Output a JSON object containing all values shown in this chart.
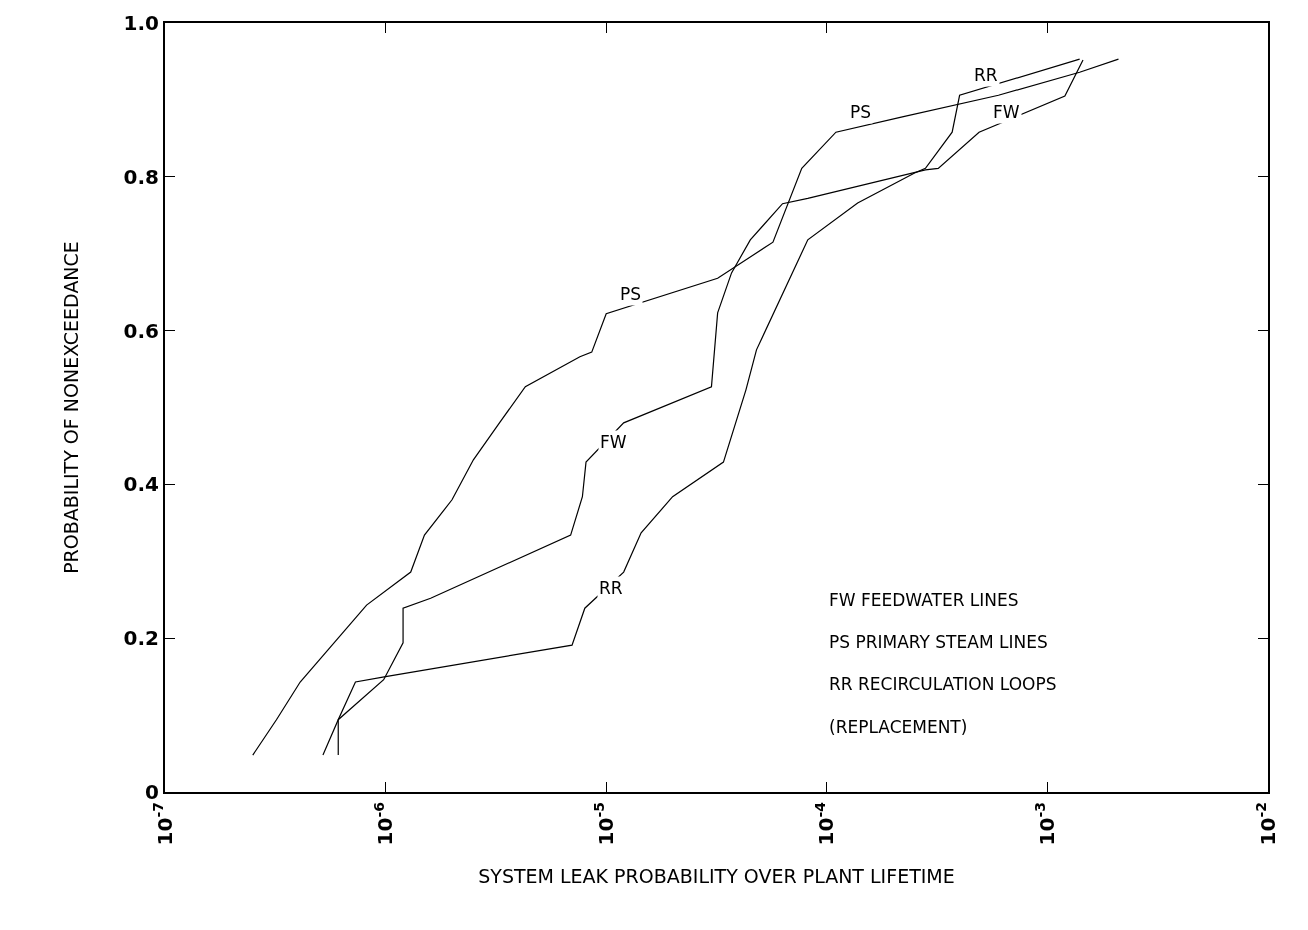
{
  "chart_data": {
    "type": "line",
    "xlabel": "SYSTEM LEAK PROBABILITY OVER PLANT LIFETIME",
    "ylabel": "PROBABILITY OF NONEXCEEDANCE",
    "log": "x",
    "grid": false,
    "marker": "none",
    "line_style": "solid",
    "xlim": [
      1e-07,
      0.01
    ],
    "xticks": [
      {
        "value": 1e-07,
        "label": "10$^{-7}$"
      },
      {
        "value": 1e-06,
        "label": "10$^{-6}$"
      },
      {
        "value": 1e-05,
        "label": "10$^{-5}$"
      },
      {
        "value": 0.0001,
        "label": "10$^{-4}$"
      },
      {
        "value": 0.001,
        "label": "10$^{-3}$"
      },
      {
        "value": 0.01,
        "label": "10$^{-2}$"
      }
    ],
    "ylim": [
      0,
      1
    ],
    "yticks": [
      0,
      {
        "value": 0.2,
        "label": "0.2"
      },
      {
        "value": 0.4,
        "label": "0.4"
      },
      {
        "value": 0.6,
        "label": "0.6"
      },
      {
        "value": 0.8,
        "label": "0.8"
      },
      {
        "value": 1,
        "label": "1.0"
      }
    ],
    "series": [
      {
        "color": "#000000",
        "x": [
          2.5e-07,
          3.2e-07,
          4.1e-07,
          8.2e-07,
          1.3e-06,
          1.5e-06,
          2e-06,
          2.5e-06,
          3.3e-06,
          4.3e-06,
          7.6e-06,
          8.6e-06,
          1e-05,
          3.2e-05,
          5.7e-05,
          7.7e-05,
          0.00011,
          0.00022,
          0.0006,
          0.0014,
          0.0021
        ],
        "values": [
          0.048,
          0.094,
          0.143,
          0.243,
          0.286,
          0.334,
          0.38,
          0.432,
          0.481,
          0.527,
          0.566,
          0.572,
          0.622,
          0.668,
          0.715,
          0.811,
          0.858,
          0.878,
          0.906,
          0.936,
          0.953
        ]
      },
      {
        "color": "#000000",
        "x": [
          5.2e-07,
          6.1e-07,
          9.8e-07,
          1.2e-06,
          1.2e-06,
          1.6e-06,
          6.9e-06,
          7.8e-06,
          8.1e-06,
          1.2e-05,
          3e-05,
          3.2e-05,
          3.7e-05,
          4.5e-05,
          6.3e-05,
          8.2e-05,
          0.00028,
          0.00032,
          0.00049,
          0.0012,
          0.00145
        ],
        "values": [
          0.048,
          0.094,
          0.146,
          0.194,
          0.239,
          0.252,
          0.334,
          0.384,
          0.429,
          0.48,
          0.527,
          0.623,
          0.675,
          0.718,
          0.765,
          0.772,
          0.809,
          0.811,
          0.858,
          0.905,
          0.952
        ]
      },
      {
        "color": "#000000",
        "x": [
          6.1e-07,
          6.1e-07,
          7.3e-07,
          1e-06,
          7e-06,
          8e-06,
          1.2e-05,
          1.44e-05,
          2e-05,
          3.4e-05,
          4.3e-05,
          4.8e-05,
          8.2e-05,
          0.000138,
          0.00025,
          0.00028,
          0.00037,
          0.0004,
          0.0014
        ],
        "values": [
          0.048,
          0.094,
          0.143,
          0.15,
          0.191,
          0.239,
          0.286,
          0.337,
          0.384,
          0.429,
          0.523,
          0.575,
          0.718,
          0.766,
          0.805,
          0.811,
          0.858,
          0.906,
          0.953
        ]
      }
    ],
    "annotations": [
      {
        "text": "PS",
        "x": 1e-05,
        "y": 0.622
      },
      {
        "text": "PS",
        "x": 0.00011,
        "y": 0.858
      },
      {
        "text": "RR",
        "x": 0.0004,
        "y": 0.906
      },
      {
        "text": "FW",
        "x": 0.00049,
        "y": 0.858
      },
      {
        "text": "FW",
        "x": 8.1e-06,
        "y": 0.429
      },
      {
        "text": "RR",
        "x": 8e-06,
        "y": 0.239
      },
      "FW FEEDWATER LINES",
      "PS PRIMARY STEAM LINES",
      "RR RECIRCULATION LOOPS",
      "(REPLACEMENT)"
    ]
  }
}
